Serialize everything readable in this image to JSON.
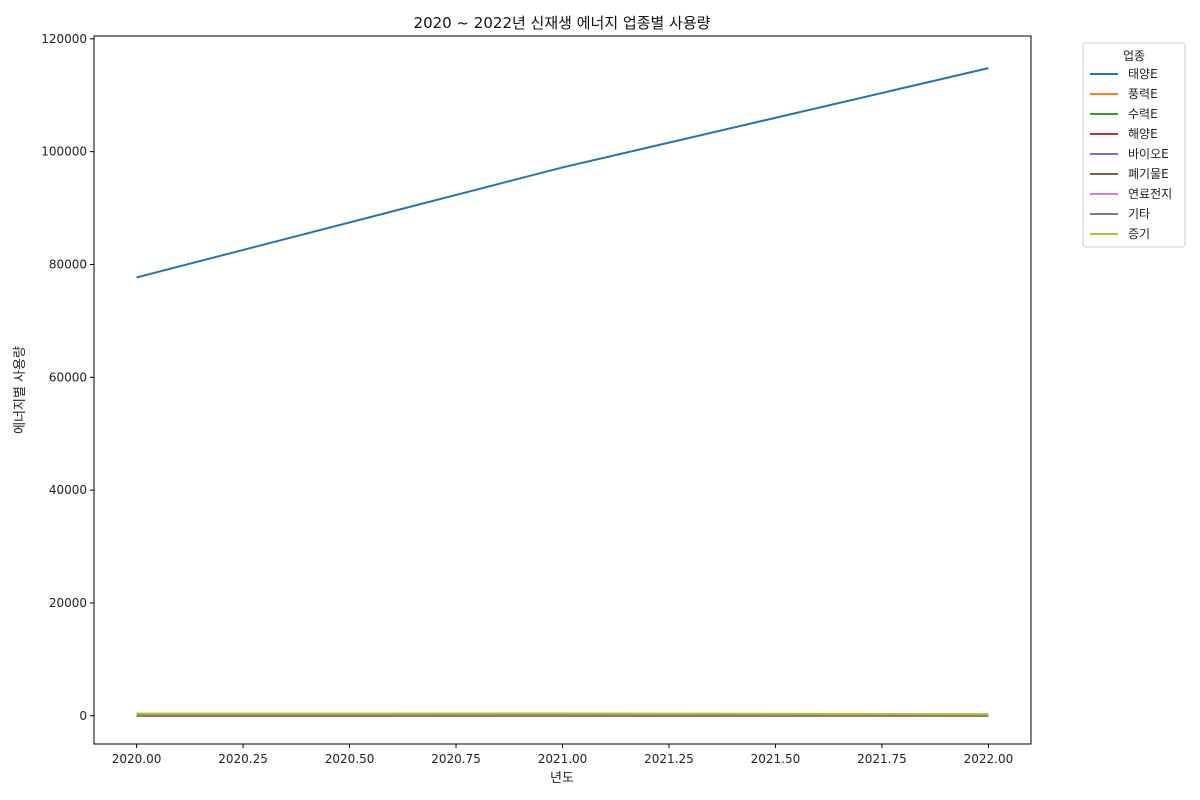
{
  "chart_data": {
    "type": "line",
    "title": "2020 ~ 2022년 신재생 에너지 업종별 사용량",
    "xlabel": "년도",
    "ylabel": "에너지별 사용량",
    "x": [
      2020,
      2021,
      2022
    ],
    "xlim": [
      1999.9,
      2022.1
    ],
    "ylim": [
      -5000,
      120500
    ],
    "xticks": [
      2020.0,
      2020.25,
      2020.5,
      2020.75,
      2021.0,
      2021.25,
      2021.5,
      2021.75,
      2022.0
    ],
    "xtick_labels": [
      "2020.00",
      "2020.25",
      "2020.50",
      "2020.75",
      "2021.00",
      "2021.25",
      "2021.50",
      "2021.75",
      "2022.00"
    ],
    "yticks": [
      0,
      20000,
      40000,
      60000,
      80000,
      100000,
      120000
    ],
    "ytick_labels": [
      "0",
      "20000",
      "40000",
      "60000",
      "80000",
      "100000",
      "120000"
    ],
    "grid": false,
    "legend": {
      "title": "업종",
      "placement": "outside-top-right"
    },
    "series": [
      {
        "name": "태양E",
        "color": "#1f77b4",
        "values": [
          77700,
          97200,
          114800
        ]
      },
      {
        "name": "풍력E",
        "color": "#ff7f0e",
        "values": [
          20,
          22,
          25
        ]
      },
      {
        "name": "수력E",
        "color": "#2ca02c",
        "values": [
          15,
          15,
          15
        ]
      },
      {
        "name": "해양E",
        "color": "#d62728",
        "values": [
          5,
          5,
          5
        ]
      },
      {
        "name": "바이오E",
        "color": "#9467bd",
        "values": [
          80,
          85,
          75
        ]
      },
      {
        "name": "폐기물E",
        "color": "#8c564b",
        "values": [
          10,
          10,
          10
        ]
      },
      {
        "name": "연료전지",
        "color": "#e377c2",
        "values": [
          5,
          5,
          5
        ]
      },
      {
        "name": "기타",
        "color": "#7f7f7f",
        "values": [
          10,
          10,
          10
        ]
      },
      {
        "name": "증기",
        "color": "#bcbd22",
        "values": [
          380,
          400,
          300
        ]
      }
    ]
  }
}
